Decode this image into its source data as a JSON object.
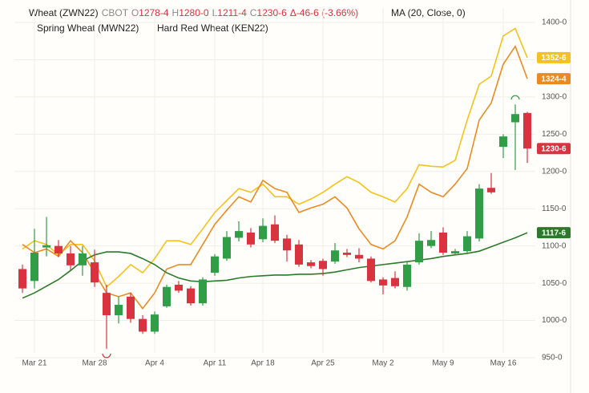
{
  "chart_data": {
    "type": "candlestick",
    "header": {
      "exchange": "CBOT",
      "ohlc": [
        {
          "key": "O",
          "value": "1278-4"
        },
        {
          "key": "H",
          "value": "1280-0"
        },
        {
          "key": "L",
          "value": "1211-4"
        },
        {
          "key": "C",
          "value": "1230-6"
        }
      ],
      "change": "Δ-46-6 (-3.66%)"
    },
    "categories": [
      null,
      "Mar 21",
      null,
      null,
      null,
      null,
      "Mar 28",
      null,
      null,
      null,
      null,
      "Apr 4",
      null,
      null,
      null,
      null,
      "Apr 11",
      null,
      null,
      null,
      "Apr 18",
      null,
      null,
      null,
      null,
      "Apr 25",
      null,
      null,
      null,
      null,
      "May 2",
      null,
      null,
      null,
      null,
      "May 9",
      null,
      null,
      null,
      null,
      "May 16",
      null,
      null
    ],
    "candles": {
      "name": "Wheat (ZWN22)",
      "up_color": "#2f9e46",
      "down_color": "#d9333f",
      "open": [
        1069,
        1053,
        1098,
        1100,
        1090,
        1074,
        1078,
        1037,
        1007,
        1032,
        1002,
        985,
        1019,
        1048,
        1043,
        1023,
        1064,
        1083,
        1111,
        1118,
        1109,
        1129,
        1110,
        1102,
        1078,
        1080,
        1079,
        1091,
        1088,
        1083,
        1055,
        1057,
        1045,
        1078,
        1100,
        1118,
        1090,
        1093,
        1110,
        1178,
        1233,
        1266,
        1278.5
      ],
      "high": [
        1075,
        1123,
        1139,
        1108,
        1100,
        1100,
        1095,
        1048,
        1032,
        1037,
        1007,
        1012,
        1048,
        1053,
        1046,
        1058,
        1089,
        1120,
        1133,
        1124,
        1137,
        1141,
        1115,
        1108,
        1081,
        1083,
        1104,
        1096,
        1097,
        1086,
        1058,
        1066,
        1080,
        1117,
        1120,
        1125,
        1096,
        1120,
        1183,
        1198,
        1250,
        1290,
        1280
      ],
      "low": [
        1037,
        1043,
        1086,
        1085,
        1068,
        1060,
        1045,
        962,
        996,
        997,
        982,
        982,
        1017,
        1037,
        1020,
        1020,
        1060,
        1080,
        1106,
        1098,
        1105,
        1104,
        1079,
        1072,
        1070,
        1060,
        1076,
        1085,
        1078,
        1051,
        1035,
        1043,
        1040,
        1075,
        1097,
        1088,
        1088,
        1090,
        1106,
        1170,
        1218,
        1202,
        1211.5
      ],
      "close": [
        1043,
        1091,
        1101,
        1090,
        1074,
        1090,
        1051,
        1007,
        1021,
        1002,
        985,
        1008,
        1045,
        1040,
        1023,
        1055,
        1086,
        1112,
        1120,
        1102,
        1127,
        1107,
        1094,
        1075,
        1073,
        1069,
        1094,
        1088,
        1083,
        1053,
        1047,
        1046,
        1075,
        1107,
        1108,
        1091,
        1093,
        1113,
        1177,
        1172,
        1247,
        1277,
        1230.75
      ],
      "last_label": "1230-6"
    },
    "series": [
      {
        "name": "Spring Wheat (MWN22)",
        "color": "#f5c21b",
        "last_label": "1352-6",
        "values": [
          1096,
          1107,
          1102,
          1088,
          1102,
          1102,
          1080,
          1045,
          1059,
          1075,
          1064,
          1083,
          1107,
          1107,
          1102,
          1123,
          1145,
          1161,
          1177,
          1172,
          1183,
          1166,
          1166,
          1156,
          1163,
          1172,
          1183,
          1193,
          1185,
          1172,
          1166,
          1159,
          1177,
          1209,
          1207,
          1206,
          1215,
          1269,
          1317,
          1328,
          1382,
          1392,
          1352.75
        ]
      },
      {
        "name": "Hard Red Wheat (KEN22)",
        "color": "#ec8a22",
        "last_label": "1324-4",
        "values": [
          1102,
          1091,
          1096,
          1086,
          1107,
          1091,
          1064,
          1037,
          1032,
          1037,
          1016,
          1037,
          1069,
          1075,
          1075,
          1102,
          1129,
          1148,
          1166,
          1159,
          1188,
          1177,
          1172,
          1145,
          1151,
          1156,
          1166,
          1151,
          1123,
          1102,
          1096,
          1107,
          1139,
          1183,
          1172,
          1166,
          1183,
          1204,
          1269,
          1292,
          1344,
          1368,
          1324.5
        ]
      },
      {
        "name": "MA (20, Close, 0)",
        "color": "#2b7a2b",
        "last_label": "1117-6",
        "values": [
          1030,
          1037,
          1046,
          1055,
          1067,
          1080,
          1088,
          1092,
          1092,
          1090,
          1083,
          1075,
          1064,
          1057,
          1053,
          1052,
          1053,
          1054,
          1057,
          1059,
          1060,
          1061,
          1061,
          1062,
          1062,
          1063,
          1065,
          1068,
          1071,
          1073,
          1075,
          1077,
          1079,
          1081,
          1083,
          1086,
          1088,
          1090,
          1093,
          1099,
          1105,
          1111,
          1117.75
        ]
      }
    ],
    "ylim": [
      942,
      1420
    ],
    "yticks": [
      {
        "value": 950,
        "label": "950-0"
      },
      {
        "value": 1000,
        "label": "1000-0"
      },
      {
        "value": 1050,
        "label": "1050-0"
      },
      {
        "value": 1100,
        "label": "1100-0"
      },
      {
        "value": 1150,
        "label": "1150-0"
      },
      {
        "value": 1200,
        "label": "1200-0"
      },
      {
        "value": 1250,
        "label": "1250-0"
      },
      {
        "value": 1300,
        "label": "1300-0"
      },
      {
        "value": 1350,
        "label": "1350-0"
      },
      {
        "value": 1400,
        "label": "1400-0"
      }
    ],
    "grid": true
  }
}
